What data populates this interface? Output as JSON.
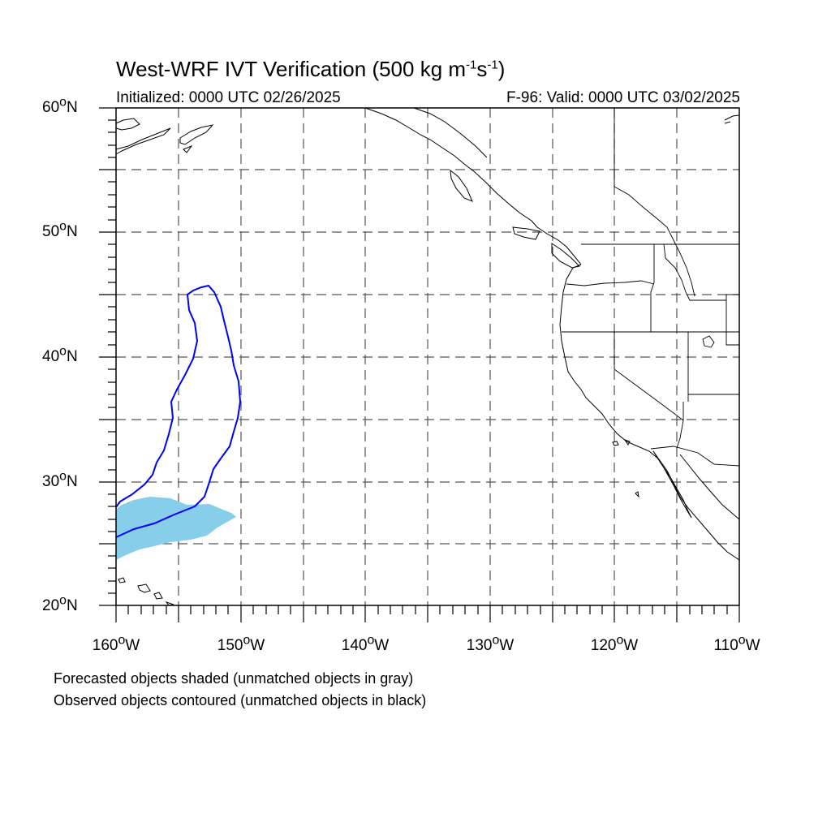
{
  "title": {
    "prefix": "West-WRF IVT Verification (500 kg m",
    "exp1": "-1",
    "mid": "s",
    "exp2": "-1",
    "suffix": ")"
  },
  "subtitle_left": "Initialized: 0000 UTC 02/26/2025",
  "subtitle_right": "F-96: Valid: 0000 UTC 03/02/2025",
  "lat_labels": [
    "60",
    "50",
    "40",
    "30",
    "20"
  ],
  "lon_labels": [
    "160",
    "150",
    "140",
    "130",
    "120",
    "110"
  ],
  "lat_suffix": "N",
  "lon_suffix": "W",
  "degree_symbol": "o",
  "notes": [
    "Forecasted objects shaded (unmatched objects in gray)",
    "Observed objects contoured (unmatched objects in black)"
  ],
  "colors": {
    "forecast_fill": "#87ceeb",
    "observed_contour": "#0000ff",
    "coastline": "#000000",
    "gridline": "#555555"
  },
  "extent": {
    "lon_min": -160,
    "lon_max": -110,
    "lat_min": 20,
    "lat_max": 60
  }
}
